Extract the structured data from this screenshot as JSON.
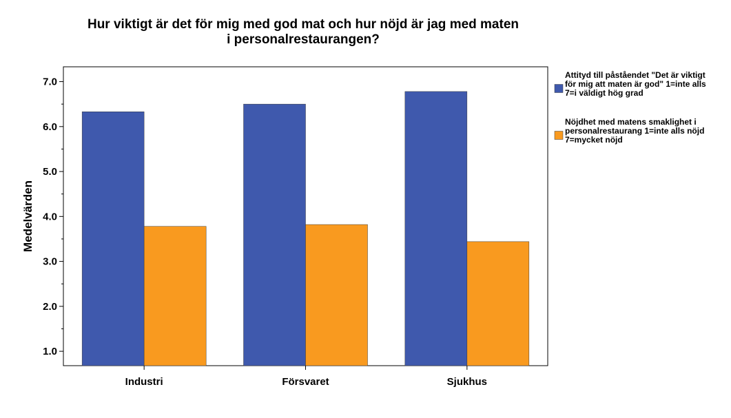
{
  "chart_data": {
    "type": "bar",
    "title_lines": [
      "Hur viktigt är det för mig med god mat och hur nöjd är jag med maten",
      "i personalrestaurangen?"
    ],
    "xlabel": "",
    "ylabel": "Medelvärden",
    "categories": [
      "Industri",
      "Försvaret",
      "Sjukhus"
    ],
    "ylim": [
      0.68,
      7.33
    ],
    "yticks": [
      1.0,
      2.0,
      3.0,
      4.0,
      5.0,
      6.0,
      7.0
    ],
    "ytick_labels": [
      "1.0",
      "2.0",
      "3.0",
      "4.0",
      "5.0",
      "6.0",
      "7.0"
    ],
    "grid": false,
    "legend_position": "right",
    "series": [
      {
        "name": "Attityd till påståendet \"Det är viktigt för mig att maten är god\" 1=inte alls 7=i väldigt hög grad",
        "legend_lines": [
          "Attityd till påståendet \"Det är viktigt",
          "för mig att maten är god\" 1=inte alls",
          "7=i väldigt hög grad"
        ],
        "color": "#3f59ad",
        "values": [
          6.33,
          6.5,
          6.78
        ]
      },
      {
        "name": "Nöjdhet med matens smaklighet i personalrestaurang 1=inte alls nöjd 7=mycket nöjd",
        "legend_lines": [
          "Nöjdhet med matens smaklighet i",
          "personalrestaurang 1=inte alls nöjd",
          "7=mycket nöjd"
        ],
        "color": "#f99a1f",
        "values": [
          3.78,
          3.82,
          3.44
        ]
      }
    ]
  }
}
